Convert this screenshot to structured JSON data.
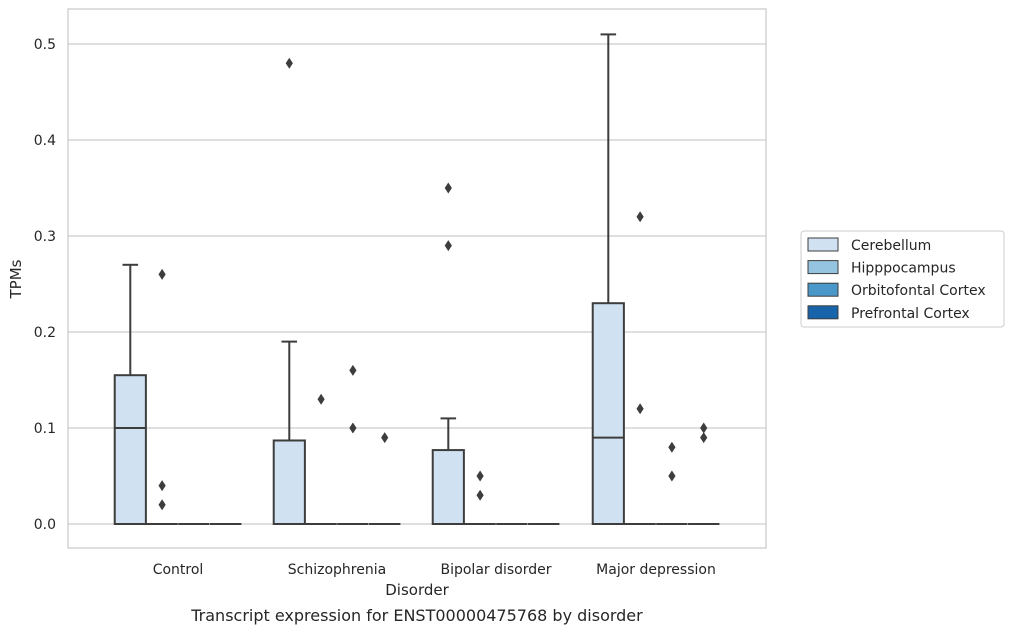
{
  "caption": "Transcript expression for ENST00000475768 by disorder",
  "chart_data": {
    "type": "box",
    "xlabel": "Disorder",
    "ylabel": "TPMs",
    "ylim": [
      -0.025,
      0.537
    ],
    "yticks": [
      0.0,
      0.1,
      0.2,
      0.3,
      0.4,
      0.5
    ],
    "ytick_labels": [
      "0.0",
      "0.1",
      "0.2",
      "0.3",
      "0.4",
      "0.5"
    ],
    "grid": "horizontal",
    "legend_position": "right",
    "categories": [
      "Control",
      "Schizophrenia",
      "Bipolar disorder",
      "Major depression"
    ],
    "series": [
      {
        "name": "Cerebellum",
        "color": "#d0e1f2",
        "boxes": [
          {
            "q1": 0.0,
            "median": 0.1,
            "q3": 0.155,
            "whisker_low": 0.0,
            "whisker_high": 0.27,
            "outliers": []
          },
          {
            "q1": 0.0,
            "median": 0.0,
            "q3": 0.087,
            "whisker_low": 0.0,
            "whisker_high": 0.19,
            "outliers": [
              0.48
            ]
          },
          {
            "q1": 0.0,
            "median": 0.0,
            "q3": 0.077,
            "whisker_low": 0.0,
            "whisker_high": 0.11,
            "outliers": [
              0.29,
              0.35
            ]
          },
          {
            "q1": 0.0,
            "median": 0.09,
            "q3": 0.23,
            "whisker_low": 0.0,
            "whisker_high": 0.51,
            "outliers": []
          }
        ]
      },
      {
        "name": "Hipppocampus",
        "color": "#94c4df",
        "boxes": [
          {
            "q1": 0.0,
            "median": 0.0,
            "q3": 0.0,
            "whisker_low": 0.0,
            "whisker_high": 0.0,
            "outliers": [
              0.02,
              0.04,
              0.26
            ]
          },
          {
            "q1": 0.0,
            "median": 0.0,
            "q3": 0.0,
            "whisker_low": 0.0,
            "whisker_high": 0.0,
            "outliers": [
              0.13
            ]
          },
          {
            "q1": 0.0,
            "median": 0.0,
            "q3": 0.0,
            "whisker_low": 0.0,
            "whisker_high": 0.0,
            "outliers": [
              0.03,
              0.05
            ]
          },
          {
            "q1": 0.0,
            "median": 0.0,
            "q3": 0.0,
            "whisker_low": 0.0,
            "whisker_high": 0.0,
            "outliers": [
              0.12,
              0.32
            ]
          }
        ]
      },
      {
        "name": "Orbitofontal Cortex",
        "color": "#4a98c9",
        "boxes": [
          {
            "q1": 0.0,
            "median": 0.0,
            "q3": 0.0,
            "whisker_low": 0.0,
            "whisker_high": 0.0,
            "outliers": []
          },
          {
            "q1": 0.0,
            "median": 0.0,
            "q3": 0.0,
            "whisker_low": 0.0,
            "whisker_high": 0.0,
            "outliers": [
              0.1,
              0.16
            ]
          },
          {
            "q1": 0.0,
            "median": 0.0,
            "q3": 0.0,
            "whisker_low": 0.0,
            "whisker_high": 0.0,
            "outliers": []
          },
          {
            "q1": 0.0,
            "median": 0.0,
            "q3": 0.0,
            "whisker_low": 0.0,
            "whisker_high": 0.0,
            "outliers": [
              0.05,
              0.08
            ]
          }
        ]
      },
      {
        "name": "Prefrontal Cortex",
        "color": "#1764ab",
        "boxes": [
          {
            "q1": 0.0,
            "median": 0.0,
            "q3": 0.0,
            "whisker_low": 0.0,
            "whisker_high": 0.0,
            "outliers": []
          },
          {
            "q1": 0.0,
            "median": 0.0,
            "q3": 0.0,
            "whisker_low": 0.0,
            "whisker_high": 0.0,
            "outliers": [
              0.09
            ]
          },
          {
            "q1": 0.0,
            "median": 0.0,
            "q3": 0.0,
            "whisker_low": 0.0,
            "whisker_high": 0.0,
            "outliers": []
          },
          {
            "q1": 0.0,
            "median": 0.0,
            "q3": 0.0,
            "whisker_low": 0.0,
            "whisker_high": 0.0,
            "outliers": [
              0.09,
              0.1
            ]
          }
        ]
      }
    ]
  }
}
